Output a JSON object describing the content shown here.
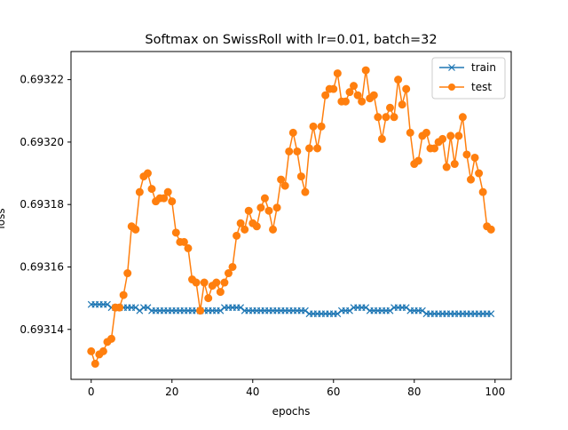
{
  "chart_data": {
    "type": "line",
    "title": "Softmax on SwissRoll with lr=0.01, batch=32",
    "xlabel": "epochs",
    "ylabel": "loss",
    "xlim": [
      -5,
      104
    ],
    "ylim": [
      0.693124,
      0.693229
    ],
    "xticks": [
      0,
      20,
      40,
      60,
      80,
      100
    ],
    "yticks": [
      0.69314,
      0.69316,
      0.69318,
      0.6932,
      0.69322
    ],
    "ytick_labels": [
      "0.69314",
      "0.69316",
      "0.69318",
      "0.69320",
      "0.69322"
    ],
    "grid": false,
    "legend": "top-right",
    "series": [
      {
        "name": "train",
        "color": "#1f77b4",
        "marker": "x",
        "values": [
          0.693148,
          0.693148,
          0.693148,
          0.693148,
          0.693148,
          0.693147,
          0.693147,
          0.693147,
          0.693147,
          0.693147,
          0.693147,
          0.693147,
          0.693146,
          0.693147,
          0.693147,
          0.693146,
          0.693146,
          0.693146,
          0.693146,
          0.693146,
          0.693146,
          0.693146,
          0.693146,
          0.693146,
          0.693146,
          0.693146,
          0.693146,
          0.693146,
          0.693146,
          0.693146,
          0.693146,
          0.693146,
          0.693146,
          0.693147,
          0.693147,
          0.693147,
          0.693147,
          0.693147,
          0.693146,
          0.693146,
          0.693146,
          0.693146,
          0.693146,
          0.693146,
          0.693146,
          0.693146,
          0.693146,
          0.693146,
          0.693146,
          0.693146,
          0.693146,
          0.693146,
          0.693146,
          0.693146,
          0.693145,
          0.693145,
          0.693145,
          0.693145,
          0.693145,
          0.693145,
          0.693145,
          0.693145,
          0.693146,
          0.693146,
          0.693146,
          0.693147,
          0.693147,
          0.693147,
          0.693147,
          0.693146,
          0.693146,
          0.693146,
          0.693146,
          0.693146,
          0.693146,
          0.693147,
          0.693147,
          0.693147,
          0.693147,
          0.693146,
          0.693146,
          0.693146,
          0.693146,
          0.693145,
          0.693145,
          0.693145,
          0.693145,
          0.693145,
          0.693145,
          0.693145,
          0.693145,
          0.693145,
          0.693145,
          0.693145,
          0.693145,
          0.693145,
          0.693145,
          0.693145,
          0.693145,
          0.693145
        ]
      },
      {
        "name": "test",
        "color": "#ff7f0e",
        "marker": "o",
        "values": [
          0.693133,
          0.693129,
          0.693132,
          0.693133,
          0.693136,
          0.693137,
          0.693147,
          0.693147,
          0.693151,
          0.693158,
          0.693173,
          0.693172,
          0.693184,
          0.693189,
          0.69319,
          0.693185,
          0.693181,
          0.693182,
          0.693182,
          0.693184,
          0.693181,
          0.693171,
          0.693168,
          0.693168,
          0.693166,
          0.693156,
          0.693155,
          0.693146,
          0.693155,
          0.69315,
          0.693154,
          0.693155,
          0.693152,
          0.693155,
          0.693158,
          0.69316,
          0.69317,
          0.693174,
          0.693172,
          0.693178,
          0.693174,
          0.693173,
          0.693179,
          0.693182,
          0.693178,
          0.693172,
          0.693179,
          0.693188,
          0.693186,
          0.693197,
          0.693203,
          0.693197,
          0.693189,
          0.693184,
          0.693198,
          0.693205,
          0.693198,
          0.693205,
          0.693215,
          0.693217,
          0.693217,
          0.693222,
          0.693213,
          0.693213,
          0.693216,
          0.693218,
          0.693215,
          0.693213,
          0.693223,
          0.693214,
          0.693215,
          0.693208,
          0.693201,
          0.693208,
          0.693211,
          0.693208,
          0.69322,
          0.693212,
          0.693217,
          0.693203,
          0.693193,
          0.693194,
          0.693202,
          0.693203,
          0.693198,
          0.693198,
          0.6932,
          0.693201,
          0.693192,
          0.693202,
          0.693193,
          0.693202,
          0.693208,
          0.693196,
          0.693188,
          0.693195,
          0.69319,
          0.693184,
          0.693173,
          0.693172
        ]
      }
    ]
  }
}
